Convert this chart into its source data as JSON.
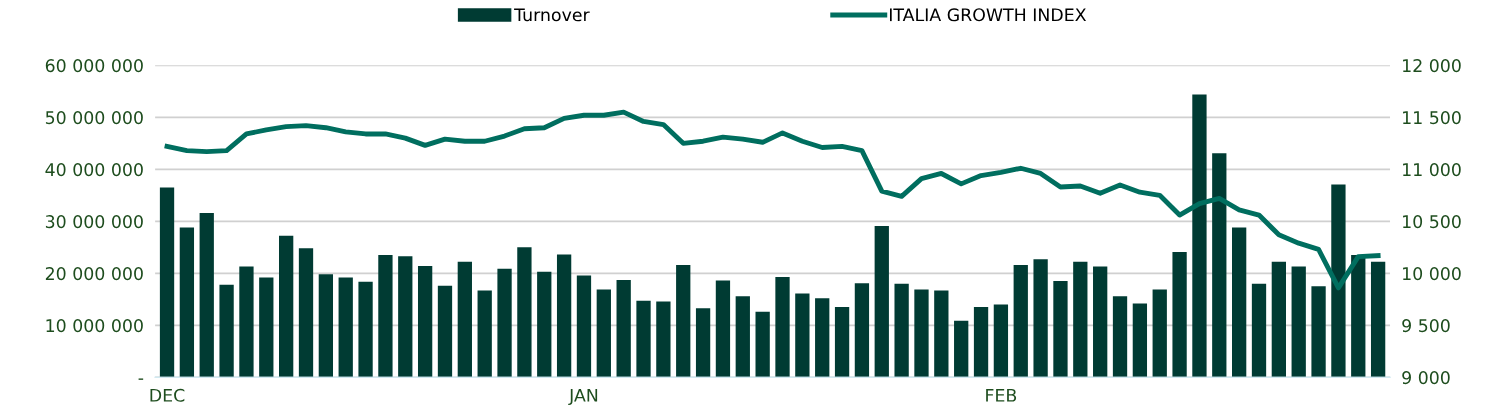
{
  "chart_data": {
    "type": "bar",
    "categories": [
      "DEC",
      null,
      null,
      null,
      null,
      null,
      null,
      null,
      null,
      null,
      null,
      null,
      null,
      null,
      null,
      null,
      null,
      null,
      null,
      null,
      null,
      "JAN",
      null,
      null,
      null,
      null,
      null,
      null,
      null,
      null,
      null,
      null,
      null,
      null,
      null,
      null,
      null,
      null,
      null,
      null,
      null,
      null,
      "FEB",
      null,
      null,
      null,
      null,
      null,
      null,
      null,
      null,
      null,
      null,
      null,
      null,
      null,
      null,
      null,
      null,
      null,
      null,
      null
    ],
    "series": [
      {
        "name": "Turnover",
        "color": "#003b33",
        "values": [
          36500000,
          28800000,
          31600000,
          17800000,
          21300000,
          19200000,
          27200000,
          24800000,
          19800000,
          19200000,
          18400000,
          23500000,
          23300000,
          21400000,
          17600000,
          22200000,
          16700000,
          20900000,
          25000000,
          20300000,
          23600000,
          19600000,
          16900000,
          18700000,
          14700000,
          14600000,
          21600000,
          13300000,
          18600000,
          15600000,
          12600000,
          19300000,
          16100000,
          15200000,
          13500000,
          18100000,
          29100000,
          18000000,
          16900000,
          16700000,
          10900000,
          13500000,
          14000000,
          21600000,
          22700000,
          18500000,
          22200000,
          21300000,
          15600000,
          14200000,
          16900000,
          24100000,
          54400000,
          43100000,
          28800000,
          18000000,
          22200000,
          21300000,
          17500000,
          37100000,
          23500000,
          22200000
        ]
      },
      {
        "name": "ITALIA GROWTH INDEX",
        "type": "line",
        "axis": "y2",
        "color": "#006e5f",
        "values": [
          11220,
          11180,
          11170,
          11180,
          11340,
          11380,
          11410,
          11420,
          11400,
          11360,
          11340,
          11340,
          11300,
          11230,
          11290,
          11270,
          11270,
          11320,
          11390,
          11400,
          11490,
          11520,
          11520,
          11550,
          11460,
          11430,
          11250,
          11270,
          11310,
          11290,
          11260,
          11350,
          11270,
          11210,
          11220,
          11180,
          10790,
          10740,
          10910,
          10960,
          10860,
          10940,
          10970,
          11010,
          10960,
          10830,
          10840,
          10770,
          10850,
          10780,
          10750,
          10560,
          10670,
          10720,
          10610,
          10560,
          10370,
          10290,
          10230,
          9860,
          10160,
          10170
        ]
      }
    ],
    "ylim": [
      0,
      60000000
    ],
    "yticks": [
      {
        "value": 0,
        "label": "-"
      },
      {
        "value": 10000000,
        "label": "10 000 000"
      },
      {
        "value": 20000000,
        "label": "20 000 000"
      },
      {
        "value": 30000000,
        "label": "30 000 000"
      },
      {
        "value": 40000000,
        "label": "40 000 000"
      },
      {
        "value": 50000000,
        "label": "50 000 000"
      },
      {
        "value": 60000000,
        "label": "60 000 000"
      }
    ],
    "y2lim": [
      9000,
      12000
    ],
    "y2ticks": [
      {
        "value": 9000,
        "label": "9 000"
      },
      {
        "value": 9500,
        "label": "9 500"
      },
      {
        "value": 10000,
        "label": "10 000"
      },
      {
        "value": 10500,
        "label": "10 500"
      },
      {
        "value": 11000,
        "label": "11 000"
      },
      {
        "value": 11500,
        "label": "11 500"
      },
      {
        "value": 12000,
        "label": "12 000"
      }
    ],
    "grid": "y",
    "legend": "top"
  }
}
